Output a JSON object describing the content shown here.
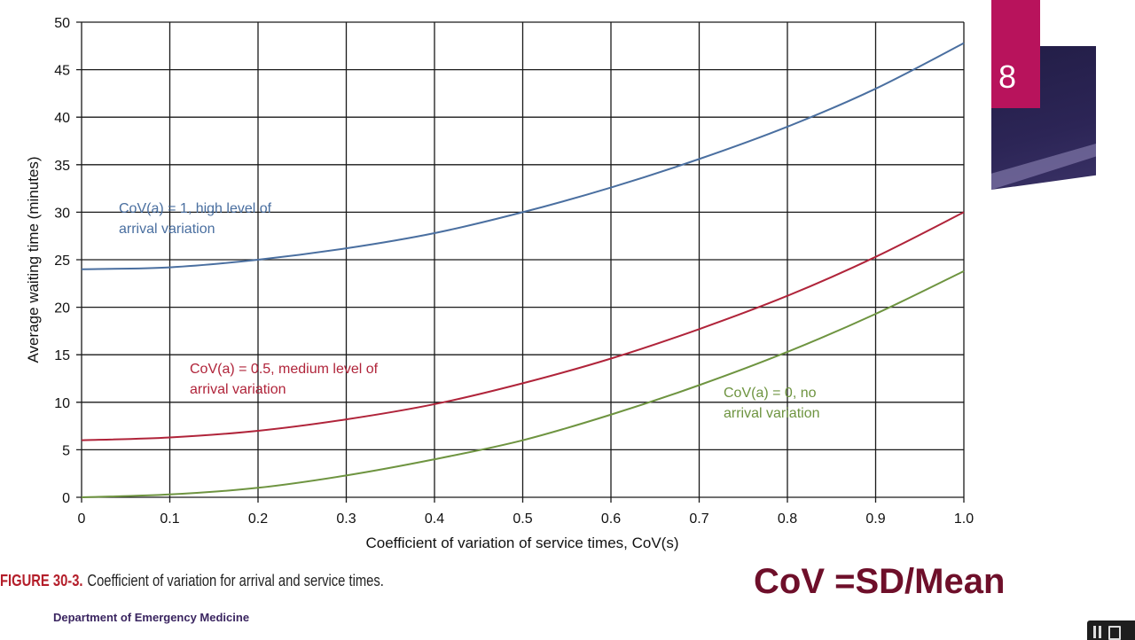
{
  "chart_data": {
    "type": "line",
    "xlabel": "Coefficient of variation of service times, CoV(s)",
    "ylabel": "Average waiting time (minutes)",
    "xlim": [
      0,
      1.0
    ],
    "ylim": [
      0,
      50
    ],
    "x_ticks": [
      "0",
      "0.1",
      "0.2",
      "0.3",
      "0.4",
      "0.5",
      "0.6",
      "0.7",
      "0.8",
      "0.9",
      "1.0"
    ],
    "y_ticks": [
      "0",
      "5",
      "10",
      "15",
      "20",
      "25",
      "30",
      "35",
      "40",
      "45",
      "50"
    ],
    "grid": true,
    "x": [
      0,
      0.1,
      0.2,
      0.3,
      0.4,
      0.5,
      0.6,
      0.7,
      0.8,
      0.9,
      1.0
    ],
    "series": [
      {
        "color": "#4a6fa0",
        "values": [
          24.0,
          24.2,
          25.0,
          26.2,
          27.8,
          30.0,
          32.6,
          35.6,
          39.0,
          43.0,
          47.8
        ],
        "label_lines": [
          "CoV(a) = 1, high level of",
          "arrival variation"
        ]
      },
      {
        "color": "#b0243a",
        "values": [
          6.0,
          6.3,
          7.0,
          8.2,
          9.8,
          12.0,
          14.6,
          17.7,
          21.2,
          25.3,
          30.0
        ],
        "label_lines": [
          "CoV(a) = 0.5, medium level of",
          "arrival variation"
        ]
      },
      {
        "color": "#6e9440",
        "values": [
          0.0,
          0.3,
          1.0,
          2.3,
          4.0,
          6.0,
          8.7,
          11.8,
          15.3,
          19.3,
          23.8
        ],
        "label_lines": [
          "CoV(a) = 0, no",
          "arrival variation"
        ]
      }
    ]
  },
  "caption": {
    "label": "FIGURE 30-3.",
    "text": "Coefficient of variation for arrival and service times."
  },
  "formula": "CoV =SD/Mean",
  "department": "Department of Emergency Medicine",
  "slide_number": "8",
  "colors": {
    "badge_pink": "#b8135c",
    "badge_dark": "#221d46",
    "formula": "#6e0f2a",
    "figure_label": "#b41e2a"
  }
}
